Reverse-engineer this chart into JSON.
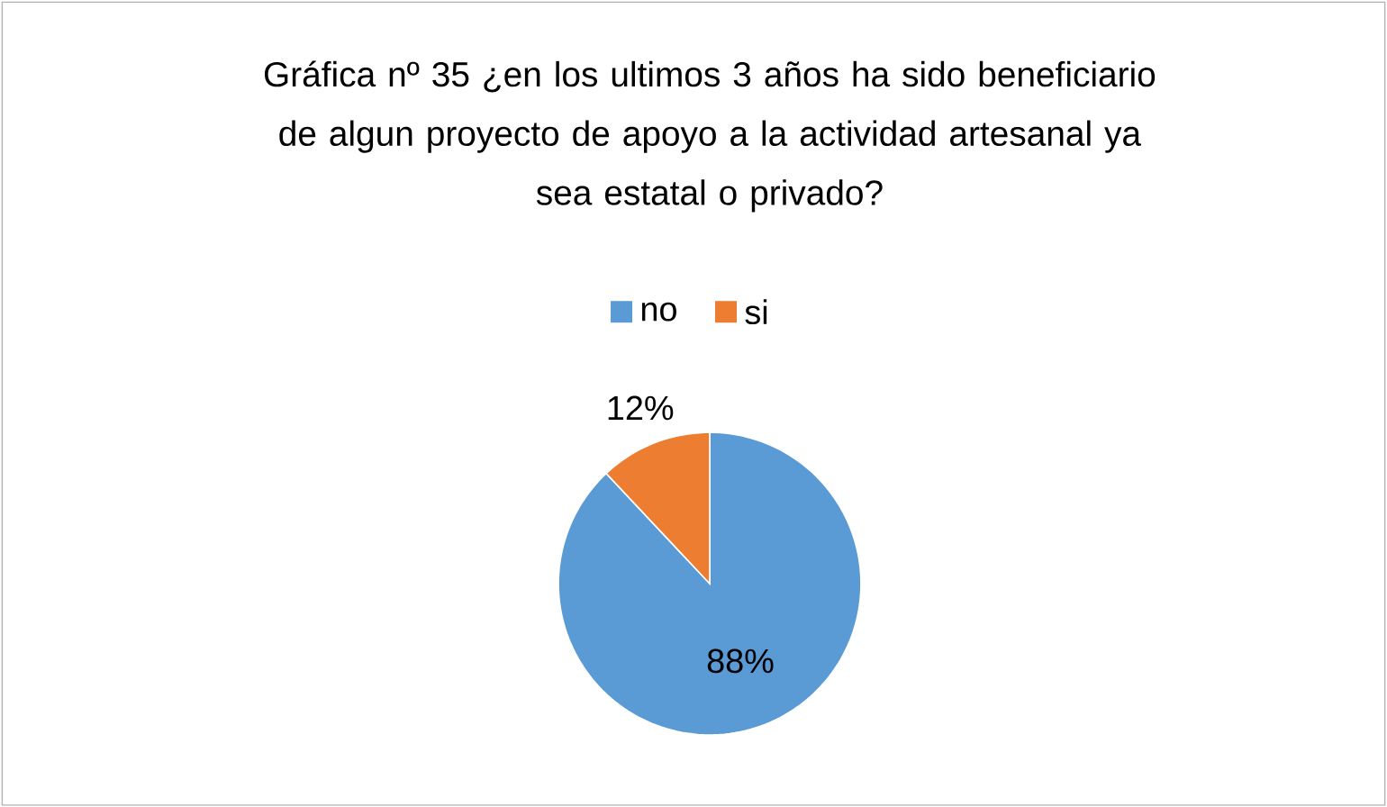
{
  "chart_data": {
    "type": "pie",
    "title": "Gráfica nº 35 ¿en los ultimos 3 años ha sido beneficiario de algun proyecto de apoyo a la actividad artesanal ya sea estatal o privado?",
    "categories": [
      "no",
      "si"
    ],
    "values": [
      88,
      12
    ],
    "colors": [
      "#5b9bd5",
      "#ed7d31"
    ],
    "value_labels": [
      "88%",
      "12%"
    ],
    "legend": "top"
  }
}
